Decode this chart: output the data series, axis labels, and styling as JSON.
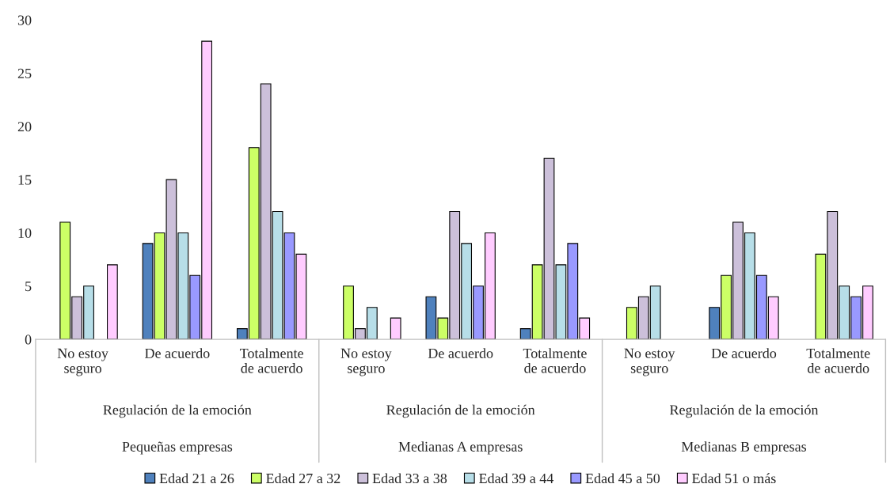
{
  "chart_data": {
    "type": "bar",
    "categories": [
      "No estoy\nseguro",
      "De acuerdo",
      "Totalmente\nde acuerdo",
      "No estoy\nseguro",
      "De acuerdo",
      "Totalmente\nde acuerdo",
      "No estoy\nseguro",
      "De acuerdo",
      "Totalmente\nde acuerdo"
    ],
    "series": [
      {
        "name": "Edad 21 a 26",
        "color": "#4f81bd",
        "values": [
          null,
          9,
          1,
          null,
          4,
          1,
          null,
          3,
          null
        ]
      },
      {
        "name": "Edad 27 a 32",
        "color": "#ccff66",
        "values": [
          11,
          10,
          18,
          5,
          2,
          7,
          3,
          6,
          8
        ]
      },
      {
        "name": "Edad 33 a 38",
        "color": "#ccc0da",
        "values": [
          4,
          15,
          24,
          1,
          12,
          17,
          4,
          11,
          12
        ]
      },
      {
        "name": "Edad 39 a 44",
        "color": "#b7dee8",
        "values": [
          5,
          10,
          12,
          3,
          9,
          7,
          5,
          10,
          5
        ]
      },
      {
        "name": "Edad 45 a 50",
        "color": "#9999ff",
        "values": [
          null,
          6,
          10,
          null,
          5,
          9,
          null,
          6,
          4
        ]
      },
      {
        "name": "Edad 51 o más",
        "color": "#ffccff",
        "values": [
          7,
          28,
          8,
          2,
          10,
          2,
          null,
          4,
          5
        ]
      }
    ],
    "annotations": [
      "Regulación de la emoción",
      "Pequeñas empresas",
      "Regulación de la emoción",
      "Medianas A empresas",
      "Regulación de la emoción",
      "Medianas B empresas"
    ],
    "ylim": [
      0,
      30
    ],
    "yticks": [
      0,
      5,
      10,
      15,
      20,
      25,
      30
    ],
    "grid": false,
    "legend": "bottom"
  }
}
